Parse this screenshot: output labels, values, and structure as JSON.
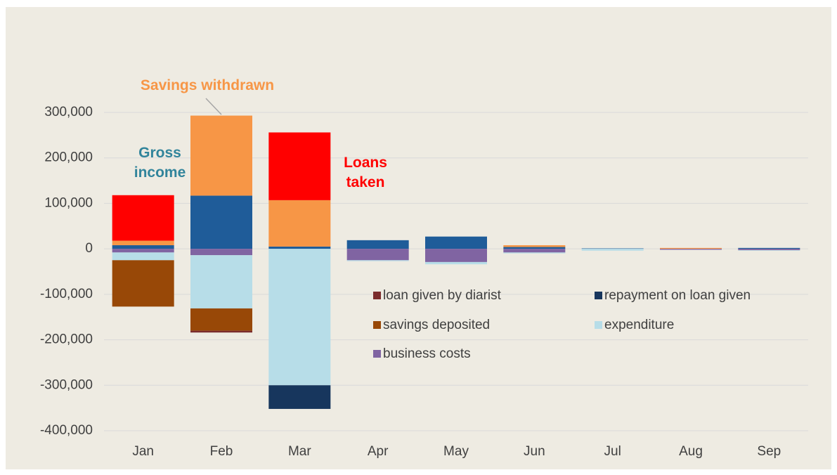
{
  "chart_data": {
    "type": "stacked_bar",
    "categories": [
      "Jan",
      "Feb",
      "Mar",
      "Apr",
      "May",
      "Jun",
      "Jul",
      "Aug",
      "Sep"
    ],
    "series": [
      {
        "name": "Gross income",
        "color": "#1f5c99",
        "label_color": "#31849b",
        "values": [
          8000,
          117000,
          5000,
          19000,
          27000,
          4000,
          1000,
          0,
          2000
        ]
      },
      {
        "name": "Savings withdrawn",
        "color": "#f79646",
        "label_color": "#f79646",
        "values": [
          10000,
          176000,
          102000,
          0,
          0,
          4000,
          0,
          2000,
          0
        ]
      },
      {
        "name": "Loans taken",
        "color": "#ff0000",
        "label_color": "#ff0000",
        "values": [
          100000,
          0,
          149000,
          0,
          0,
          0,
          0,
          0,
          0
        ]
      },
      {
        "name": "business costs",
        "color": "#8064a2",
        "values": [
          -8000,
          -14000,
          0,
          -25000,
          -29000,
          -8000,
          0,
          -2000,
          -3000
        ]
      },
      {
        "name": "expenditure",
        "color": "#b7dde8",
        "values": [
          -17000,
          -117000,
          -300000,
          -2000,
          -5000,
          -2000,
          -4000,
          0,
          -1000
        ]
      },
      {
        "name": "savings deposited",
        "color": "#984807",
        "values": [
          -102000,
          -49000,
          0,
          0,
          0,
          0,
          0,
          0,
          0
        ]
      },
      {
        "name": "loan given by diarist",
        "color": "#7b2c2c",
        "values": [
          0,
          -4000,
          0,
          0,
          0,
          0,
          0,
          0,
          0
        ]
      },
      {
        "name": "repayment on loan given",
        "color": "#17365d",
        "values": [
          0,
          0,
          -52000,
          0,
          0,
          0,
          0,
          0,
          0
        ]
      }
    ],
    "ylim": [
      -400000,
      300000
    ],
    "yticks": [
      {
        "value": -400000,
        "label": "-400,000"
      },
      {
        "value": -300000,
        "label": "-300,000"
      },
      {
        "value": -200000,
        "label": "-200,000"
      },
      {
        "value": -100000,
        "label": "-100,000"
      },
      0,
      {
        "value": 100000,
        "label": "100,000"
      },
      {
        "value": 200000,
        "label": "200,000"
      },
      {
        "value": 300000,
        "label": "300,000"
      }
    ],
    "grid": true
  }
}
